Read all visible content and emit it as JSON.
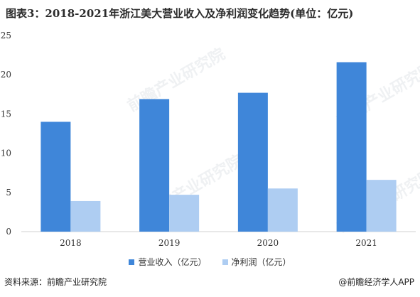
{
  "title": "图表3：2018-2021年浙江美大营业收入及净利润变化趋势(单位：亿元)",
  "source": "资料来源：前瞻产业研究院",
  "credit": "@前瞻经济学人APP",
  "watermark": "前瞻产业研究院",
  "colors": {
    "revenue": "#3f86d9",
    "profit": "#aecdf2",
    "axis": "#d0d0d0"
  },
  "chart_data": {
    "type": "bar",
    "categories": [
      "2018",
      "2019",
      "2020",
      "2021"
    ],
    "series": [
      {
        "name": "营业收入（亿元）",
        "values": [
          14.0,
          16.9,
          17.7,
          21.6
        ]
      },
      {
        "name": "净利润（亿元）",
        "values": [
          3.9,
          4.7,
          5.5,
          6.6
        ]
      }
    ],
    "yticks": [
      0,
      5,
      10,
      15,
      20,
      25
    ],
    "ylim": [
      0,
      25
    ],
    "legend": "bottom-center",
    "grid": false
  }
}
